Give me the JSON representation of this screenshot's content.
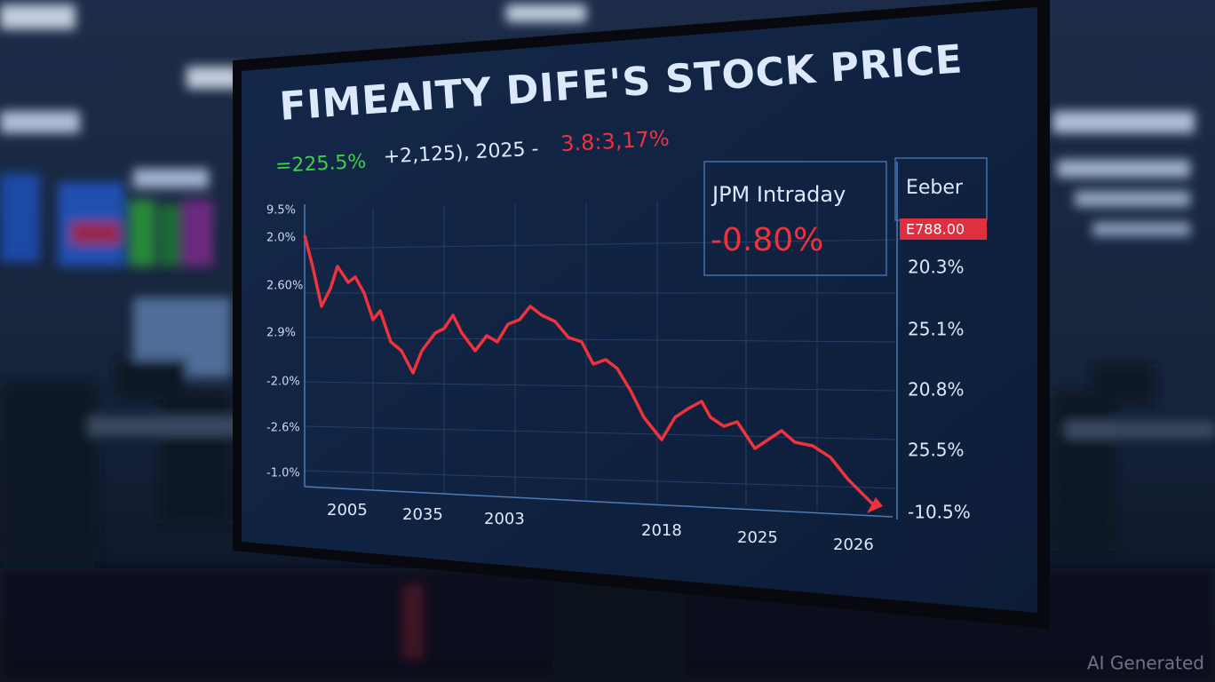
{
  "screen": {
    "title": "FIMEAITY DIFE'S STOCK PRICE",
    "ticker_line": {
      "gain": "=225.5%",
      "middle": "+2,125), 2025 -",
      "loss": "3.8:3,17%"
    },
    "left_axis": [
      "9.5%",
      "2.0%",
      "2.60%",
      "2.9%",
      "-2.0%",
      "-2.6%",
      "-1.0%"
    ],
    "x_axis": [
      "2005",
      "2035",
      "2003",
      "2018",
      "2025",
      "2026"
    ],
    "right_axis": [
      "20.3%",
      "25.1%",
      "20.8%",
      "25.5%",
      "-10.5%"
    ],
    "intraday_panel": {
      "label": "JPM Intraday",
      "change": "-0.80%"
    },
    "side_panel": {
      "label": "Eeber",
      "price": "E788.00"
    }
  },
  "watermark": "AI Generated"
}
